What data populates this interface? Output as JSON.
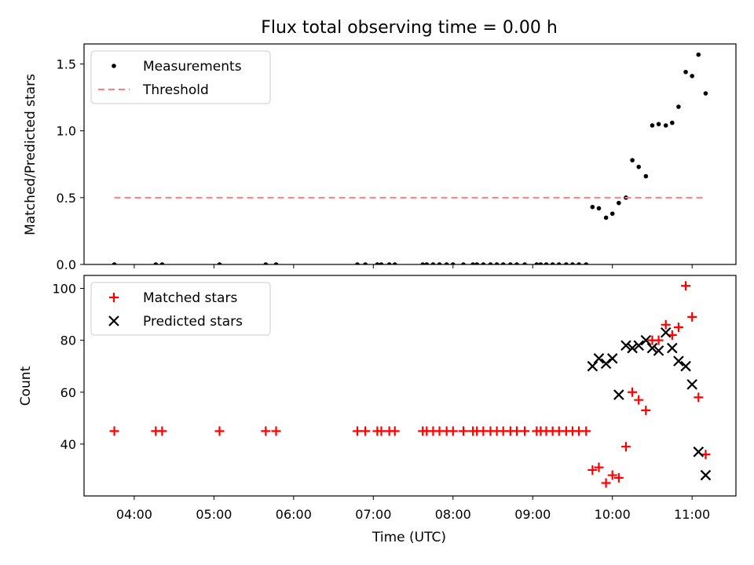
{
  "chart_data": {
    "title": "Flux total observing time = 0.00 h",
    "xlabel": "Time (UTC)",
    "x_ticks": [
      "04:00",
      "05:00",
      "06:00",
      "07:00",
      "08:00",
      "09:00",
      "10:00",
      "11:00"
    ],
    "x_tick_hours": [
      4,
      5,
      6,
      7,
      8,
      9,
      10,
      11
    ],
    "xlim_hours": [
      3.37,
      11.55
    ],
    "panels": [
      {
        "type": "scatter",
        "ylabel": "Matched/Predicted stars",
        "ylim": [
          0,
          1.65
        ],
        "y_ticks": [
          0.0,
          0.5,
          1.0,
          1.5
        ],
        "y_tick_labels": [
          "0.0",
          "0.5",
          "1.0",
          "1.5"
        ],
        "legend": {
          "position": "top-left",
          "entries": [
            "Measurements",
            "Threshold"
          ]
        },
        "series": [
          {
            "name": "Measurements",
            "marker": "dot",
            "color": "#000000",
            "points": [
              [
                3.75,
                0
              ],
              [
                4.27,
                0
              ],
              [
                4.35,
                0
              ],
              [
                5.07,
                0
              ],
              [
                5.65,
                0
              ],
              [
                5.78,
                0
              ],
              [
                6.8,
                0
              ],
              [
                6.9,
                0
              ],
              [
                7.05,
                0
              ],
              [
                7.1,
                0
              ],
              [
                7.2,
                0
              ],
              [
                7.27,
                0
              ],
              [
                7.62,
                0
              ],
              [
                7.67,
                0
              ],
              [
                7.75,
                0
              ],
              [
                7.83,
                0
              ],
              [
                7.92,
                0
              ],
              [
                8.0,
                0
              ],
              [
                8.13,
                0
              ],
              [
                8.25,
                0
              ],
              [
                8.3,
                0
              ],
              [
                8.38,
                0
              ],
              [
                8.47,
                0
              ],
              [
                8.55,
                0
              ],
              [
                8.63,
                0
              ],
              [
                8.72,
                0
              ],
              [
                8.8,
                0
              ],
              [
                8.9,
                0
              ],
              [
                9.05,
                0
              ],
              [
                9.1,
                0
              ],
              [
                9.17,
                0
              ],
              [
                9.25,
                0
              ],
              [
                9.33,
                0
              ],
              [
                9.42,
                0
              ],
              [
                9.5,
                0
              ],
              [
                9.58,
                0
              ],
              [
                9.67,
                0
              ],
              [
                9.75,
                0.43
              ],
              [
                9.83,
                0.42
              ],
              [
                9.92,
                0.35
              ],
              [
                10.0,
                0.38
              ],
              [
                10.08,
                0.46
              ],
              [
                10.17,
                0.5
              ],
              [
                10.25,
                0.78
              ],
              [
                10.33,
                0.73
              ],
              [
                10.42,
                0.66
              ],
              [
                10.5,
                1.04
              ],
              [
                10.58,
                1.05
              ],
              [
                10.67,
                1.04
              ],
              [
                10.75,
                1.06
              ],
              [
                10.83,
                1.18
              ],
              [
                10.92,
                1.44
              ],
              [
                11.0,
                1.41
              ],
              [
                11.08,
                1.57
              ],
              [
                11.17,
                1.28
              ]
            ]
          },
          {
            "name": "Threshold",
            "line_style": "dashed",
            "color": "#ff7f7f",
            "y": 0.5,
            "x_range": [
              3.75,
              11.17
            ]
          }
        ]
      },
      {
        "type": "scatter",
        "ylabel": "Count",
        "ylim": [
          20,
          105
        ],
        "y_ticks": [
          40,
          60,
          80,
          100
        ],
        "y_tick_labels": [
          "40",
          "60",
          "80",
          "100"
        ],
        "legend": {
          "position": "top-left",
          "entries": [
            "Matched stars",
            "Predicted stars"
          ]
        },
        "series": [
          {
            "name": "Matched stars",
            "marker": "plus",
            "color": "#ff0000",
            "points": [
              [
                3.75,
                45
              ],
              [
                4.27,
                45
              ],
              [
                4.35,
                45
              ],
              [
                5.07,
                45
              ],
              [
                5.65,
                45
              ],
              [
                5.78,
                45
              ],
              [
                6.8,
                45
              ],
              [
                6.9,
                45
              ],
              [
                7.05,
                45
              ],
              [
                7.1,
                45
              ],
              [
                7.2,
                45
              ],
              [
                7.27,
                45
              ],
              [
                7.62,
                45
              ],
              [
                7.67,
                45
              ],
              [
                7.75,
                45
              ],
              [
                7.83,
                45
              ],
              [
                7.92,
                45
              ],
              [
                8.0,
                45
              ],
              [
                8.13,
                45
              ],
              [
                8.25,
                45
              ],
              [
                8.3,
                45
              ],
              [
                8.38,
                45
              ],
              [
                8.47,
                45
              ],
              [
                8.55,
                45
              ],
              [
                8.63,
                45
              ],
              [
                8.72,
                45
              ],
              [
                8.8,
                45
              ],
              [
                8.9,
                45
              ],
              [
                9.05,
                45
              ],
              [
                9.1,
                45
              ],
              [
                9.17,
                45
              ],
              [
                9.25,
                45
              ],
              [
                9.33,
                45
              ],
              [
                9.42,
                45
              ],
              [
                9.5,
                45
              ],
              [
                9.58,
                45
              ],
              [
                9.67,
                45
              ],
              [
                9.75,
                30
              ],
              [
                9.83,
                31
              ],
              [
                9.92,
                25
              ],
              [
                10.0,
                28
              ],
              [
                10.08,
                27
              ],
              [
                10.17,
                39
              ],
              [
                10.25,
                60
              ],
              [
                10.33,
                57
              ],
              [
                10.42,
                53
              ],
              [
                10.5,
                80
              ],
              [
                10.58,
                80
              ],
              [
                10.67,
                86
              ],
              [
                10.75,
                82
              ],
              [
                10.83,
                85
              ],
              [
                10.92,
                101
              ],
              [
                11.0,
                89
              ],
              [
                11.08,
                58
              ],
              [
                11.17,
                36
              ]
            ]
          },
          {
            "name": "Predicted stars",
            "marker": "x",
            "color": "#000000",
            "points": [
              [
                9.75,
                70
              ],
              [
                9.83,
                73
              ],
              [
                9.92,
                71
              ],
              [
                10.0,
                73
              ],
              [
                10.08,
                59
              ],
              [
                10.17,
                78
              ],
              [
                10.25,
                77
              ],
              [
                10.33,
                78
              ],
              [
                10.42,
                80
              ],
              [
                10.5,
                77
              ],
              [
                10.58,
                76
              ],
              [
                10.67,
                83
              ],
              [
                10.75,
                77
              ],
              [
                10.83,
                72
              ],
              [
                10.92,
                70
              ],
              [
                11.0,
                63
              ],
              [
                11.08,
                37
              ],
              [
                11.17,
                28
              ]
            ]
          }
        ]
      }
    ]
  }
}
